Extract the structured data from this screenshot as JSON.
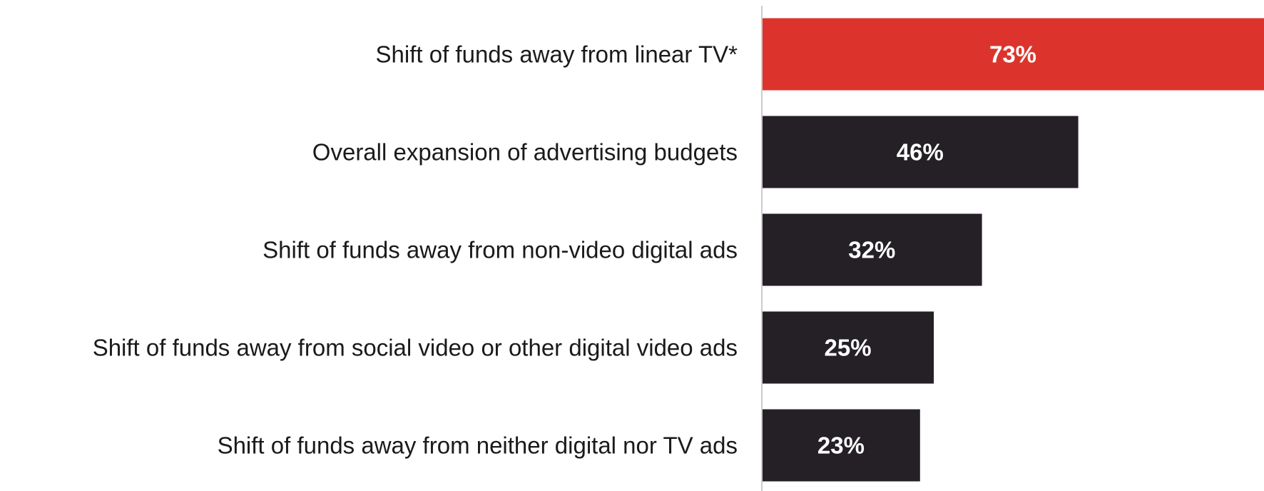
{
  "chart_data": {
    "type": "bar",
    "orientation": "horizontal",
    "categories": [
      "Shift of funds away from linear TV*",
      "Overall expansion of advertising budgets",
      "Shift of funds away from non-video digital ads",
      "Shift of funds away from social video or other digital video ads",
      "Shift of funds away from neither digital nor TV ads"
    ],
    "values": [
      73,
      46,
      32,
      25,
      23
    ],
    "value_labels": [
      "73%",
      "46%",
      "32%",
      "25%",
      "23%"
    ],
    "unit": "%",
    "title": "",
    "xlabel": "",
    "ylabel": "",
    "xlim": [
      0,
      73
    ],
    "grid": false,
    "legend": "none",
    "colors": {
      "highlight": "#dc342c",
      "default": "#242026",
      "axis": "#cccccc",
      "label_text": "#1a1a1a",
      "value_text": "#ffffff"
    },
    "highlight_index": 0
  }
}
